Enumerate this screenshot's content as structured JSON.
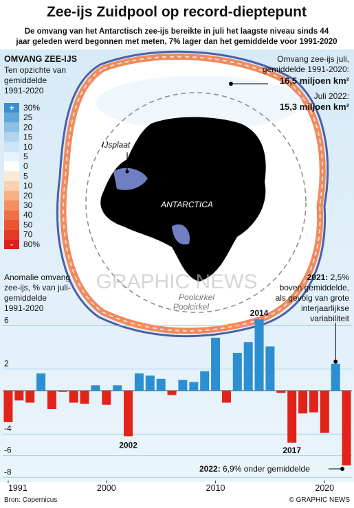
{
  "header": {
    "title": "Zee-ijs Zuidpool op record-dieptepunt",
    "subtitle": [
      "De omvang van het Antarctisch zee-ijs bereikte in juli het laagste niveau sinds 44",
      "jaar geleden werd begonnen met meten, 7% lager dan het gemiddelde voor 1991-2020"
    ]
  },
  "legend": {
    "title": "OMVANG ZEE-IJS",
    "subtitle": [
      "Ten opzichte van",
      "gemiddelde",
      "1991-2020"
    ],
    "plus": "+",
    "minus": "-",
    "labels": [
      "30%",
      "25",
      "20",
      "15",
      "10",
      "5",
      "0",
      "5",
      "10",
      "20",
      "30",
      "40",
      "50",
      "70",
      "80%"
    ],
    "colors": [
      "#3b8fd0",
      "#62a8dc",
      "#8cc0e6",
      "#b1d5ef",
      "#cfe5f6",
      "#e6f2fb",
      "#ffffff",
      "#fde9d6",
      "#fbd0ac",
      "#f8b184",
      "#f4905f",
      "#f07044",
      "#ec5430",
      "#e53a22",
      "#e01e1a"
    ]
  },
  "map": {
    "label_ice_shelf": "IJsplaat",
    "label_continent": "ANTARCTICA",
    "label_circle": [
      "Poolcirkel",
      "Poolcirkel"
    ],
    "watermark": "GRAPHIC NEWS",
    "average_note": [
      "Omvang zee-ijs juli,",
      "gemiddelde 1991-2020:"
    ],
    "average_value": "16,5 miljoen km²",
    "current_note": "Juli 2022:",
    "current_value": "15,3 miljoen km²"
  },
  "chart_data": {
    "type": "bar",
    "y_label": [
      "Anomalie omvang",
      "zee-ijs, % van juli-",
      "gemiddelde",
      "1991-2020"
    ],
    "x": [
      1991,
      1992,
      1993,
      1994,
      1995,
      1996,
      1997,
      1998,
      1999,
      2000,
      2001,
      2002,
      2003,
      2004,
      2005,
      2006,
      2007,
      2008,
      2009,
      2010,
      2011,
      2012,
      2013,
      2014,
      2015,
      2016,
      2017,
      2018,
      2019,
      2020,
      2021,
      2022
    ],
    "values": [
      -2.9,
      -0.9,
      -1.1,
      1.6,
      -1.7,
      -0.1,
      -1.1,
      -1.2,
      0.5,
      -1.3,
      0.5,
      -4.2,
      1.6,
      1.4,
      1.1,
      -0.4,
      1.0,
      0.8,
      1.8,
      4.9,
      -1.1,
      3.5,
      4.5,
      6.6,
      4.1,
      -0.2,
      -4.8,
      -2.1,
      -2.0,
      -3.9,
      2.5,
      -6.9
    ],
    "colors": {
      "positive": "#2b8fd2",
      "negative": "#e2231a"
    },
    "xlim": [
      1990.5,
      2022.5
    ],
    "xticks": [
      1991,
      2000,
      2010,
      2020
    ],
    "ylim": [
      -8.3,
      6.8
    ],
    "yticks": [
      6,
      2,
      -4,
      -6,
      -8
    ],
    "grid": true,
    "annotations": {
      "year_2002": "2002",
      "year_2014": "2014",
      "year_2017": "2017",
      "note_2021_bold": "2021:",
      "note_2021": [
        " 2,5%",
        "boven gemiddelde,",
        "als gevolg van grote",
        "interjaarlijkse",
        "variabiliteit"
      ],
      "note_2022_bold": "2022:",
      "note_2022": " 6,9% onder gemiddelde"
    }
  },
  "footer": {
    "source": "Bron: Copernicus",
    "credit": "© GRAPHIC NEWS"
  }
}
